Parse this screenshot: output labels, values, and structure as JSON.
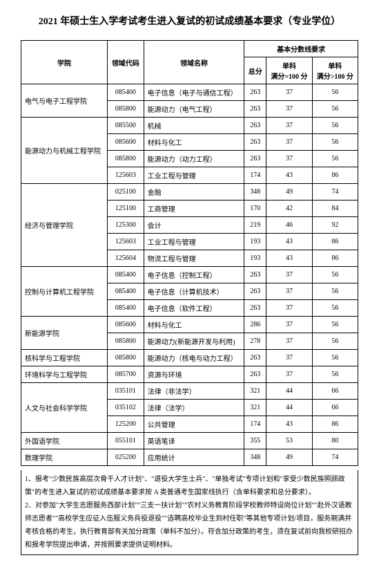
{
  "title": "2021 年硕士生入学考试考生进入复试的初试成绩基本要求（专业学位）",
  "headers": {
    "college": "学院",
    "code": "领域代码",
    "name": "领域名称",
    "requirement": "基本分数线要求",
    "total": "总分",
    "sub100": "单科\n满分=100 分",
    "subgt100": "单科\n满分>100 分"
  },
  "groups": [
    {
      "college": "电气与电子工程学院",
      "rows": [
        {
          "code": "085400",
          "name": "电子信息（电子与通信工程）",
          "total": 263,
          "sub100": 37,
          "subgt100": 56
        },
        {
          "code": "085800",
          "name": "能源动力（电气工程）",
          "total": 263,
          "sub100": 37,
          "subgt100": 56
        }
      ]
    },
    {
      "college": "能源动力与机械工程学院",
      "rows": [
        {
          "code": "085500",
          "name": "机械",
          "total": 263,
          "sub100": 37,
          "subgt100": 56
        },
        {
          "code": "085600",
          "name": "材料与化工",
          "total": 263,
          "sub100": 37,
          "subgt100": 56
        },
        {
          "code": "085800",
          "name": "能源动力（动力工程）",
          "total": 263,
          "sub100": 37,
          "subgt100": 56
        },
        {
          "code": "125603",
          "name": "工业工程与管理",
          "total": 174,
          "sub100": 43,
          "subgt100": 86
        }
      ]
    },
    {
      "college": "经济与管理学院",
      "rows": [
        {
          "code": "025100",
          "name": "金融",
          "total": 348,
          "sub100": 49,
          "subgt100": 74
        },
        {
          "code": "125100",
          "name": "工商管理",
          "total": 170,
          "sub100": 42,
          "subgt100": 84
        },
        {
          "code": "125300",
          "name": "会计",
          "total": 219,
          "sub100": 46,
          "subgt100": 92
        },
        {
          "code": "125603",
          "name": "工业工程与管理",
          "total": 193,
          "sub100": 43,
          "subgt100": 86
        },
        {
          "code": "125604",
          "name": "物流工程与管理",
          "total": 193,
          "sub100": 43,
          "subgt100": 86
        }
      ]
    },
    {
      "college": "控制与计算机工程学院",
      "rows": [
        {
          "code": "085400",
          "name": "电子信息（控制工程）",
          "total": 263,
          "sub100": 37,
          "subgt100": 56
        },
        {
          "code": "085400",
          "name": "电子信息（计算机技术）",
          "total": 263,
          "sub100": 37,
          "subgt100": 56
        },
        {
          "code": "085400",
          "name": "电子信息（软件工程）",
          "total": 263,
          "sub100": 37,
          "subgt100": 56
        }
      ]
    },
    {
      "college": "新能源学院",
      "rows": [
        {
          "code": "085600",
          "name": "材料与化工",
          "total": 286,
          "sub100": 37,
          "subgt100": 56
        },
        {
          "code": "085800",
          "name": "能源动力(新能源开发与利用)",
          "total": 278,
          "sub100": 37,
          "subgt100": 56
        }
      ]
    },
    {
      "college": "核科学与工程学院",
      "rows": [
        {
          "code": "085800",
          "name": "能源动力（核电与动力工程）",
          "total": 263,
          "sub100": 37,
          "subgt100": 56
        }
      ]
    },
    {
      "college": "环境科学与工程学院",
      "rows": [
        {
          "code": "085700",
          "name": "资源与环境",
          "total": 263,
          "sub100": 37,
          "subgt100": 56
        }
      ]
    },
    {
      "college": "人文与社会科学学院",
      "rows": [
        {
          "code": "035101",
          "name": "法律（非法学）",
          "total": 321,
          "sub100": 44,
          "subgt100": 66
        },
        {
          "code": "035102",
          "name": "法律（法学）",
          "total": 321,
          "sub100": 44,
          "subgt100": 66
        },
        {
          "code": "125200",
          "name": "公共管理",
          "total": 174,
          "sub100": 43,
          "subgt100": 86
        }
      ]
    },
    {
      "college": "外国语学院",
      "rows": [
        {
          "code": "055101",
          "name": "英语笔译",
          "total": 355,
          "sub100": 53,
          "subgt100": 80
        }
      ]
    },
    {
      "college": "数理学院",
      "rows": [
        {
          "code": "025200",
          "name": "应用统计",
          "total": 348,
          "sub100": 49,
          "subgt100": 74
        }
      ]
    }
  ],
  "notes": [
    "1、报考\"少数民族高层次骨干人才计划\"、\"退役大学生士兵\"、\"单独考试\"专项计划和\"享受少数民族照顾政策\"的考生进入复试的初试成绩基本要求按 A 类普通考生国家线执行（含单科要求和总分要求）。",
    "2、对参加\"大学生志愿服务西部计划\"\"三支一扶计划\"\"农村义务教育阶段学校教师特设岗位计划\"\"赴外汉语教师志愿者\"\"高校学生应征入伍服义务兵役退役\"\"选聘高校毕业生到村任职\"等其他专项计划/项目，服务期满并考核合格的考生，执行教育部有关加分政策（单科不加分）。符合加分政策的考生，须在复试前向我校研招办和报考学院提出申请，并按照要求提供证明材料。"
  ]
}
